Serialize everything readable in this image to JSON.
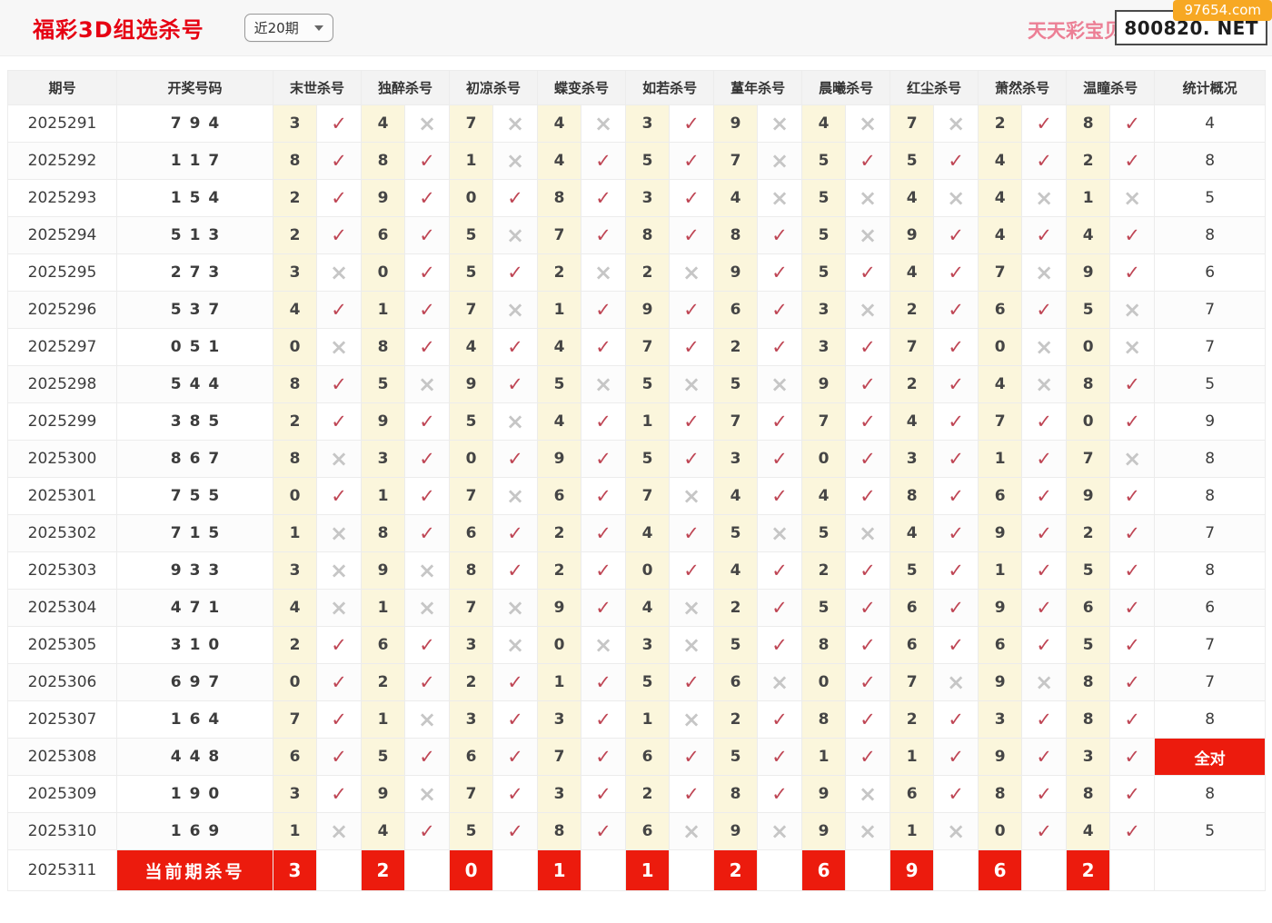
{
  "page": {
    "title": "福彩3D组选杀号",
    "range_select": {
      "value": "近20期"
    },
    "top_right": {
      "promo_text": "天天彩宝贝，天",
      "overlay_site": "800820. NET",
      "corner_tag": "97654.com"
    }
  },
  "table": {
    "headers": [
      "期号",
      "开奖号码",
      "末世杀号",
      "独醉杀号",
      "初凉杀号",
      "蝶变杀号",
      "如若杀号",
      "蓳年杀号",
      "晨曦杀号",
      "红尘杀号",
      "萧然杀号",
      "温瞳杀号",
      "统计概况"
    ],
    "rows": [
      {
        "period": "2025291",
        "draw": "794",
        "cells": [
          [
            3,
            1
          ],
          [
            4,
            0
          ],
          [
            7,
            0
          ],
          [
            4,
            0
          ],
          [
            3,
            1
          ],
          [
            9,
            0
          ],
          [
            4,
            0
          ],
          [
            7,
            0
          ],
          [
            2,
            1
          ],
          [
            8,
            1
          ]
        ],
        "stat": "4",
        "all_correct": false
      },
      {
        "period": "2025292",
        "draw": "117",
        "cells": [
          [
            8,
            1
          ],
          [
            8,
            1
          ],
          [
            1,
            0
          ],
          [
            4,
            1
          ],
          [
            5,
            1
          ],
          [
            7,
            0
          ],
          [
            5,
            1
          ],
          [
            5,
            1
          ],
          [
            4,
            1
          ],
          [
            2,
            1
          ]
        ],
        "stat": "8",
        "all_correct": false
      },
      {
        "period": "2025293",
        "draw": "154",
        "cells": [
          [
            2,
            1
          ],
          [
            9,
            1
          ],
          [
            0,
            1
          ],
          [
            8,
            1
          ],
          [
            3,
            1
          ],
          [
            4,
            0
          ],
          [
            5,
            0
          ],
          [
            4,
            0
          ],
          [
            4,
            0
          ],
          [
            1,
            0
          ]
        ],
        "stat": "5",
        "all_correct": false
      },
      {
        "period": "2025294",
        "draw": "513",
        "cells": [
          [
            2,
            1
          ],
          [
            6,
            1
          ],
          [
            5,
            0
          ],
          [
            7,
            1
          ],
          [
            8,
            1
          ],
          [
            8,
            1
          ],
          [
            5,
            0
          ],
          [
            9,
            1
          ],
          [
            4,
            1
          ],
          [
            4,
            1
          ]
        ],
        "stat": "8",
        "all_correct": false
      },
      {
        "period": "2025295",
        "draw": "273",
        "cells": [
          [
            3,
            0
          ],
          [
            0,
            1
          ],
          [
            5,
            1
          ],
          [
            2,
            0
          ],
          [
            2,
            0
          ],
          [
            9,
            1
          ],
          [
            5,
            1
          ],
          [
            4,
            1
          ],
          [
            7,
            0
          ],
          [
            9,
            1
          ]
        ],
        "stat": "6",
        "all_correct": false
      },
      {
        "period": "2025296",
        "draw": "537",
        "cells": [
          [
            4,
            1
          ],
          [
            1,
            1
          ],
          [
            7,
            0
          ],
          [
            1,
            1
          ],
          [
            9,
            1
          ],
          [
            6,
            1
          ],
          [
            3,
            0
          ],
          [
            2,
            1
          ],
          [
            6,
            1
          ],
          [
            5,
            0
          ]
        ],
        "stat": "7",
        "all_correct": false
      },
      {
        "period": "2025297",
        "draw": "051",
        "cells": [
          [
            0,
            0
          ],
          [
            8,
            1
          ],
          [
            4,
            1
          ],
          [
            4,
            1
          ],
          [
            7,
            1
          ],
          [
            2,
            1
          ],
          [
            3,
            1
          ],
          [
            7,
            1
          ],
          [
            0,
            0
          ],
          [
            0,
            0
          ]
        ],
        "stat": "7",
        "all_correct": false
      },
      {
        "period": "2025298",
        "draw": "544",
        "cells": [
          [
            8,
            1
          ],
          [
            5,
            0
          ],
          [
            9,
            1
          ],
          [
            5,
            0
          ],
          [
            5,
            0
          ],
          [
            5,
            0
          ],
          [
            9,
            1
          ],
          [
            2,
            1
          ],
          [
            4,
            0
          ],
          [
            8,
            1
          ]
        ],
        "stat": "5",
        "all_correct": false
      },
      {
        "period": "2025299",
        "draw": "385",
        "cells": [
          [
            2,
            1
          ],
          [
            9,
            1
          ],
          [
            5,
            0
          ],
          [
            4,
            1
          ],
          [
            1,
            1
          ],
          [
            7,
            1
          ],
          [
            7,
            1
          ],
          [
            4,
            1
          ],
          [
            7,
            1
          ],
          [
            0,
            1
          ]
        ],
        "stat": "9",
        "all_correct": false
      },
      {
        "period": "2025300",
        "draw": "867",
        "cells": [
          [
            8,
            0
          ],
          [
            3,
            1
          ],
          [
            0,
            1
          ],
          [
            9,
            1
          ],
          [
            5,
            1
          ],
          [
            3,
            1
          ],
          [
            0,
            1
          ],
          [
            3,
            1
          ],
          [
            1,
            1
          ],
          [
            7,
            0
          ]
        ],
        "stat": "8",
        "all_correct": false
      },
      {
        "period": "2025301",
        "draw": "755",
        "cells": [
          [
            0,
            1
          ],
          [
            1,
            1
          ],
          [
            7,
            0
          ],
          [
            6,
            1
          ],
          [
            7,
            0
          ],
          [
            4,
            1
          ],
          [
            4,
            1
          ],
          [
            8,
            1
          ],
          [
            6,
            1
          ],
          [
            9,
            1
          ]
        ],
        "stat": "8",
        "all_correct": false
      },
      {
        "period": "2025302",
        "draw": "715",
        "cells": [
          [
            1,
            0
          ],
          [
            8,
            1
          ],
          [
            6,
            1
          ],
          [
            2,
            1
          ],
          [
            4,
            1
          ],
          [
            5,
            0
          ],
          [
            5,
            0
          ],
          [
            4,
            1
          ],
          [
            9,
            1
          ],
          [
            2,
            1
          ]
        ],
        "stat": "7",
        "all_correct": false
      },
      {
        "period": "2025303",
        "draw": "933",
        "cells": [
          [
            3,
            0
          ],
          [
            9,
            0
          ],
          [
            8,
            1
          ],
          [
            2,
            1
          ],
          [
            0,
            1
          ],
          [
            4,
            1
          ],
          [
            2,
            1
          ],
          [
            5,
            1
          ],
          [
            1,
            1
          ],
          [
            5,
            1
          ]
        ],
        "stat": "8",
        "all_correct": false
      },
      {
        "period": "2025304",
        "draw": "471",
        "cells": [
          [
            4,
            0
          ],
          [
            1,
            0
          ],
          [
            7,
            0
          ],
          [
            9,
            1
          ],
          [
            4,
            0
          ],
          [
            2,
            1
          ],
          [
            5,
            1
          ],
          [
            6,
            1
          ],
          [
            9,
            1
          ],
          [
            6,
            1
          ]
        ],
        "stat": "6",
        "all_correct": false
      },
      {
        "period": "2025305",
        "draw": "310",
        "cells": [
          [
            2,
            1
          ],
          [
            6,
            1
          ],
          [
            3,
            0
          ],
          [
            0,
            0
          ],
          [
            3,
            0
          ],
          [
            5,
            1
          ],
          [
            8,
            1
          ],
          [
            6,
            1
          ],
          [
            6,
            1
          ],
          [
            5,
            1
          ]
        ],
        "stat": "7",
        "all_correct": false
      },
      {
        "period": "2025306",
        "draw": "697",
        "cells": [
          [
            0,
            1
          ],
          [
            2,
            1
          ],
          [
            2,
            1
          ],
          [
            1,
            1
          ],
          [
            5,
            1
          ],
          [
            6,
            0
          ],
          [
            0,
            1
          ],
          [
            7,
            0
          ],
          [
            9,
            0
          ],
          [
            8,
            1
          ]
        ],
        "stat": "7",
        "all_correct": false
      },
      {
        "period": "2025307",
        "draw": "164",
        "cells": [
          [
            7,
            1
          ],
          [
            1,
            0
          ],
          [
            3,
            1
          ],
          [
            3,
            1
          ],
          [
            1,
            0
          ],
          [
            2,
            1
          ],
          [
            8,
            1
          ],
          [
            2,
            1
          ],
          [
            3,
            1
          ],
          [
            8,
            1
          ]
        ],
        "stat": "8",
        "all_correct": false
      },
      {
        "period": "2025308",
        "draw": "448",
        "cells": [
          [
            6,
            1
          ],
          [
            5,
            1
          ],
          [
            6,
            1
          ],
          [
            7,
            1
          ],
          [
            6,
            1
          ],
          [
            5,
            1
          ],
          [
            1,
            1
          ],
          [
            1,
            1
          ],
          [
            9,
            1
          ],
          [
            3,
            1
          ]
        ],
        "stat": "全对",
        "all_correct": true
      },
      {
        "period": "2025309",
        "draw": "190",
        "cells": [
          [
            3,
            1
          ],
          [
            9,
            0
          ],
          [
            7,
            1
          ],
          [
            3,
            1
          ],
          [
            2,
            1
          ],
          [
            8,
            1
          ],
          [
            9,
            0
          ],
          [
            6,
            1
          ],
          [
            8,
            1
          ],
          [
            8,
            1
          ]
        ],
        "stat": "8",
        "all_correct": false
      },
      {
        "period": "2025310",
        "draw": "169",
        "cells": [
          [
            1,
            0
          ],
          [
            4,
            1
          ],
          [
            5,
            1
          ],
          [
            8,
            1
          ],
          [
            6,
            0
          ],
          [
            9,
            0
          ],
          [
            9,
            0
          ],
          [
            1,
            0
          ],
          [
            0,
            1
          ],
          [
            4,
            1
          ]
        ],
        "stat": "5",
        "all_correct": false
      }
    ],
    "current_row": {
      "period": "2025311",
      "label": "当前期杀号",
      "kills": [
        3,
        2,
        0,
        1,
        1,
        2,
        6,
        9,
        6,
        2
      ],
      "stat": ""
    }
  },
  "icons": {
    "check": "✓",
    "cross": "×",
    "chevron": "chevron-down"
  },
  "colors": {
    "accent_red": "#e60012",
    "banner_red": "#ec1b0d",
    "hit_check": "#bf4655",
    "miss_cross": "#c6c6c6",
    "cell_yellow": "#fbf6dc",
    "tag_orange": "#f7a823"
  }
}
